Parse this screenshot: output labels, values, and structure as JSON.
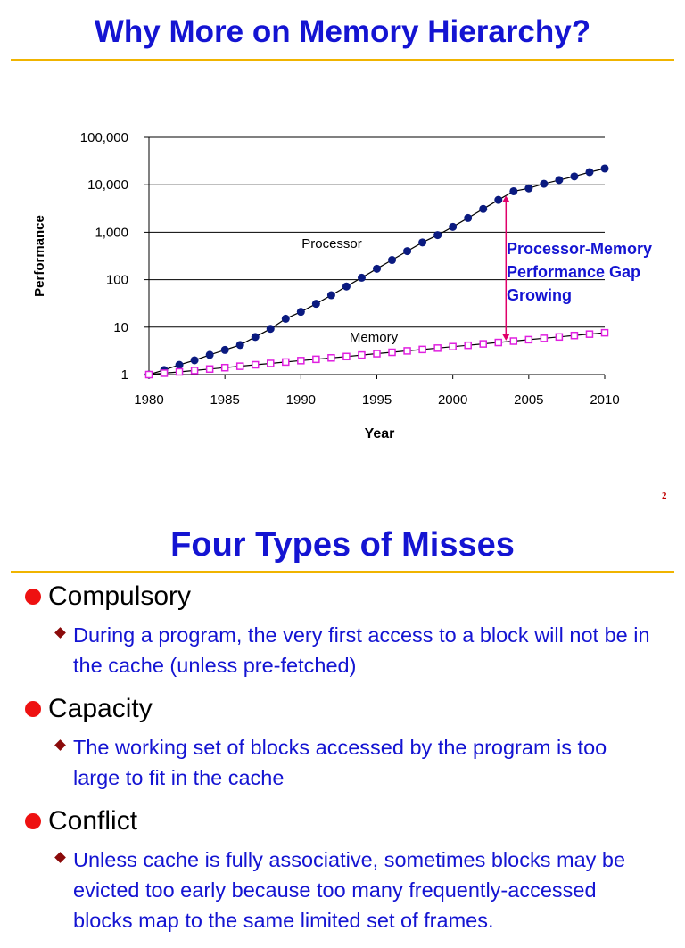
{
  "slide1": {
    "title": "Why More on Memory Hierarchy?",
    "page_number": "2"
  },
  "chart_data": {
    "type": "line",
    "xlabel": "Year",
    "ylabel": "Performance",
    "yscale": "log",
    "xlim": [
      1980,
      2010
    ],
    "ylim": [
      1,
      100000
    ],
    "x_ticks": [
      "1980",
      "1985",
      "1990",
      "1995",
      "2000",
      "2005",
      "2010"
    ],
    "y_ticks": [
      "1",
      "10",
      "100",
      "1,000",
      "10,000",
      "100,000"
    ],
    "grid": "horizontal",
    "series": [
      {
        "name": "Processor",
        "marker": "filled-circle",
        "color": "#0a1a80",
        "x": [
          1980,
          1981,
          1982,
          1983,
          1984,
          1985,
          1986,
          1987,
          1988,
          1989,
          1990,
          1991,
          1992,
          1993,
          1994,
          1995,
          1996,
          1997,
          1998,
          1999,
          2000,
          2001,
          2002,
          2003,
          2004,
          2005,
          2006,
          2007,
          2008,
          2009,
          2010
        ],
        "y": [
          1.0,
          1.25,
          1.6,
          2.0,
          2.6,
          3.3,
          4.2,
          6.2,
          9.2,
          15,
          21,
          31,
          47,
          72,
          110,
          170,
          260,
          400,
          610,
          870,
          1300,
          2000,
          3100,
          4800,
          7300,
          8400,
          10500,
          12600,
          15000,
          18500,
          22000
        ]
      },
      {
        "name": "Memory",
        "marker": "hollow-square",
        "color": "#e020e0",
        "x": [
          1980,
          1981,
          1982,
          1983,
          1984,
          1985,
          1986,
          1987,
          1988,
          1989,
          1990,
          1991,
          1992,
          1993,
          1994,
          1995,
          1996,
          1997,
          1998,
          1999,
          2000,
          2001,
          2002,
          2003,
          2004,
          2005,
          2006,
          2007,
          2008,
          2009,
          2010
        ],
        "y": [
          1.0,
          1.07,
          1.14,
          1.22,
          1.31,
          1.4,
          1.5,
          1.61,
          1.72,
          1.84,
          1.97,
          2.1,
          2.25,
          2.4,
          2.58,
          2.76,
          2.95,
          3.16,
          3.38,
          3.61,
          3.87,
          4.14,
          4.43,
          4.74,
          5.07,
          5.43,
          5.81,
          6.21,
          6.65,
          7.11,
          7.6
        ]
      }
    ],
    "annotations": [
      {
        "text": [
          "Processor-Memory",
          "Performance Gap",
          "Growing"
        ],
        "color": "#1414d2"
      }
    ],
    "gap_arrow": {
      "x": 2003.5,
      "y_from": 5.2,
      "y_to": 5900,
      "color": "#e0006a"
    }
  },
  "slide2": {
    "title": "Four Types of Misses",
    "bullets": [
      {
        "label": "Compulsory",
        "sub": "During a program, the very first access to a block will not be in the cache (unless pre-fetched)"
      },
      {
        "label": "Capacity",
        "sub": "The working set of blocks accessed by the program is too large to fit in the cache"
      },
      {
        "label": "Conflict",
        "sub": "Unless cache is fully associative, sometimes blocks may be evicted too early because too many frequently-accessed blocks map to the same limited set of frames."
      }
    ]
  }
}
